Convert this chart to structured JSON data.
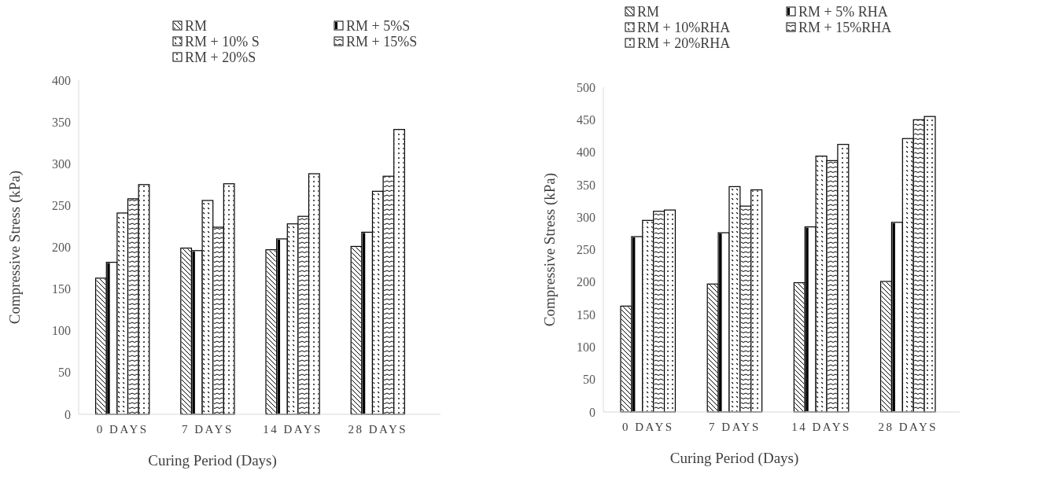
{
  "chart_data": [
    {
      "type": "bar",
      "xlabel": "Curing Period (Days)",
      "ylabel": "Compressive Stress (kPa)",
      "categories": [
        "0 DAYS",
        "7 DAYS",
        "14 DAYS",
        "28 DAYS"
      ],
      "ylim": [
        0,
        400
      ],
      "yticks": [
        0,
        50,
        100,
        150,
        200,
        250,
        300,
        350,
        400
      ],
      "grid": false,
      "legend": "top",
      "series": [
        {
          "name": "RM",
          "color": "#ffffff",
          "values": [
            163,
            199,
            197,
            201
          ]
        },
        {
          "name": "RM + 5%S",
          "color": "#ffffff",
          "values": [
            182,
            196,
            210,
            218
          ]
        },
        {
          "name": "RM + 10% S",
          "color": "#ffffff",
          "values": [
            241,
            256,
            228,
            267
          ]
        },
        {
          "name": "RM + 15%S",
          "color": "#ffffff",
          "values": [
            258,
            224,
            237,
            285
          ]
        },
        {
          "name": "RM + 20%S",
          "color": "#ffffff",
          "values": [
            275,
            276,
            288,
            341
          ]
        }
      ]
    },
    {
      "type": "bar",
      "xlabel": "Curing Period (Days)",
      "ylabel": "Compressive Stress (kPa)",
      "categories": [
        "0 DAYS",
        "7 DAYS",
        "14 DAYS",
        "28 DAYS"
      ],
      "ylim": [
        0,
        500
      ],
      "yticks": [
        0,
        50,
        100,
        150,
        200,
        250,
        300,
        350,
        400,
        450,
        500
      ],
      "grid": false,
      "legend": "top",
      "series": [
        {
          "name": "RM",
          "color": "#ffffff",
          "values": [
            163,
            197,
            199,
            201
          ]
        },
        {
          "name": "RM + 5% RHA",
          "color": "#ffffff",
          "values": [
            270,
            276,
            285,
            292
          ]
        },
        {
          "name": "RM + 10%RHA",
          "color": "#ffffff",
          "values": [
            295,
            347,
            394,
            421
          ]
        },
        {
          "name": "RM + 15%RHA",
          "color": "#ffffff",
          "values": [
            309,
            317,
            387,
            450
          ]
        },
        {
          "name": "RM + 20%RHA",
          "color": "#ffffff",
          "values": [
            311,
            342,
            412,
            455
          ]
        }
      ]
    }
  ]
}
